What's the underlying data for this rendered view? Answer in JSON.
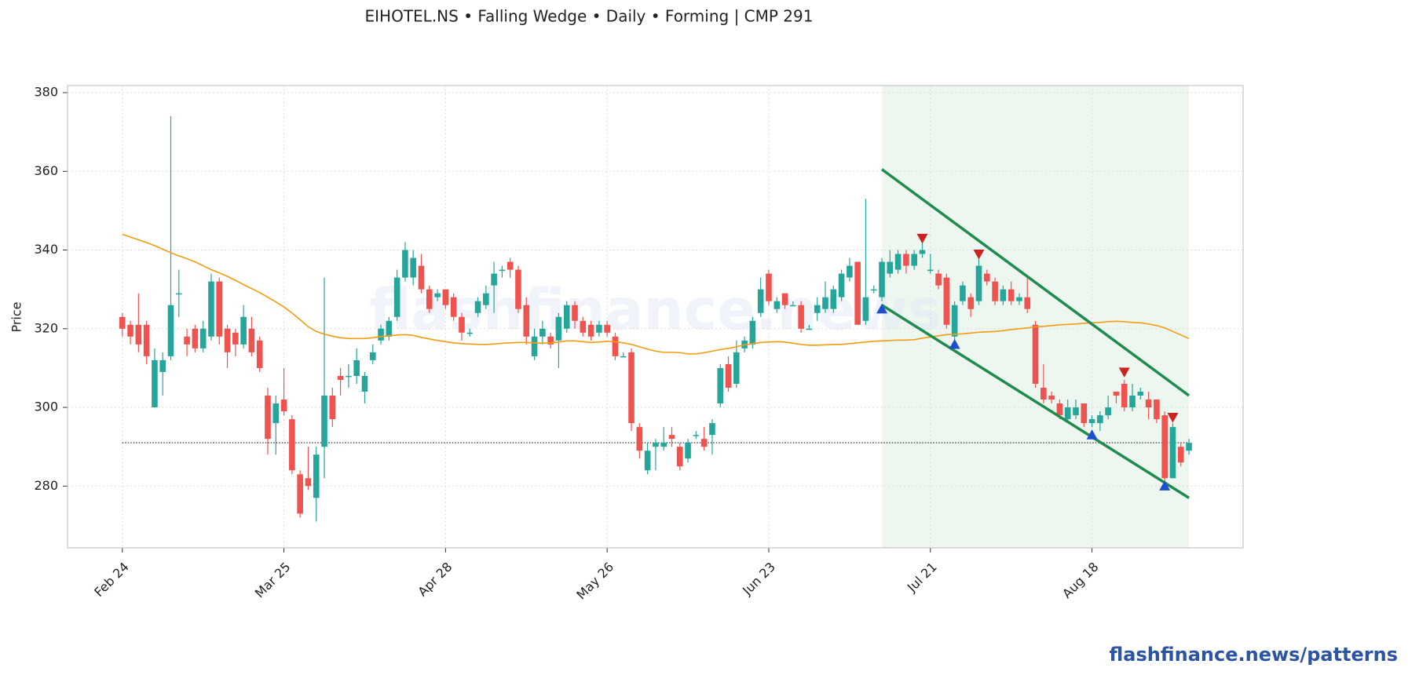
{
  "chart_data": {
    "type": "candlestick",
    "title": "EIHOTEL.NS  •  Falling Wedge  •  Daily  •  Forming  |  CMP 291",
    "ylabel": "Price",
    "watermark": "flashfinance.news",
    "footer": "flashfinance.news/patterns",
    "categories": [
      "Feb 24",
      null,
      null,
      null,
      null,
      null,
      null,
      null,
      null,
      null,
      null,
      null,
      null,
      null,
      null,
      null,
      null,
      null,
      null,
      null,
      "Mar 25",
      null,
      null,
      null,
      null,
      null,
      null,
      null,
      null,
      null,
      null,
      null,
      null,
      null,
      null,
      null,
      null,
      null,
      null,
      null,
      "Apr 28",
      null,
      null,
      null,
      null,
      null,
      null,
      null,
      null,
      null,
      null,
      null,
      null,
      null,
      null,
      null,
      null,
      null,
      null,
      null,
      "May 26",
      null,
      null,
      null,
      null,
      null,
      null,
      null,
      null,
      null,
      null,
      null,
      null,
      null,
      null,
      null,
      null,
      null,
      null,
      null,
      "Jun 23",
      null,
      null,
      null,
      null,
      null,
      null,
      null,
      null,
      null,
      null,
      null,
      null,
      null,
      null,
      null,
      null,
      null,
      null,
      null,
      "Jul 21",
      null,
      null,
      null,
      null,
      null,
      null,
      null,
      null,
      null,
      null,
      null,
      null,
      null,
      null,
      null,
      null,
      null,
      null,
      null,
      "Aug 18",
      null,
      null,
      null,
      null,
      null,
      null,
      null,
      null,
      null,
      null,
      null,
      null
    ],
    "open": [
      323,
      321,
      321,
      321,
      300,
      309,
      313,
      329,
      318,
      320,
      315,
      318,
      332,
      320,
      319,
      316,
      320,
      317,
      303,
      296,
      302,
      297,
      283,
      282,
      277,
      290,
      303,
      308,
      308,
      308,
      304,
      312,
      317,
      318,
      323,
      333,
      333,
      336,
      330,
      328,
      330,
      328,
      323,
      319,
      324,
      326,
      331,
      335,
      337,
      335,
      326,
      313,
      318,
      318,
      317,
      320,
      326,
      322,
      321,
      319,
      321,
      318,
      313,
      314,
      295,
      284,
      290,
      290,
      293,
      290,
      287,
      293,
      292,
      293,
      301,
      311,
      306,
      315,
      316,
      324,
      334,
      325,
      329,
      326,
      326,
      320,
      324,
      325,
      325,
      328,
      333,
      337,
      322,
      330,
      328,
      334,
      335,
      339,
      336,
      339,
      335,
      334,
      333,
      318,
      327,
      328,
      327,
      334,
      332,
      327,
      330,
      327,
      328,
      321,
      305,
      303,
      301,
      297,
      298,
      301,
      296,
      296,
      298,
      304,
      306,
      300,
      303,
      302,
      302,
      298,
      282,
      290,
      289
    ],
    "high": [
      324,
      322,
      329,
      322,
      315,
      314,
      374,
      335,
      320,
      321,
      322,
      334,
      333,
      321,
      320,
      326,
      323,
      318,
      305,
      303,
      310,
      298,
      284,
      290,
      290,
      333,
      305,
      310,
      311,
      315,
      309,
      316,
      321,
      323,
      335,
      342,
      340,
      339,
      331,
      330,
      330,
      329,
      324,
      320,
      328,
      331,
      337,
      336,
      338,
      336,
      328,
      320,
      322,
      319,
      324,
      327,
      327,
      323,
      322,
      322,
      322,
      319,
      314,
      315,
      296,
      291,
      292,
      295,
      295,
      291,
      292,
      294,
      295,
      297,
      311,
      313,
      317,
      318,
      323,
      333,
      335,
      328,
      329,
      327,
      327,
      321,
      328,
      332,
      331,
      335,
      338,
      337,
      353,
      331,
      338,
      340,
      340,
      340,
      340,
      342,
      339,
      335,
      334,
      327,
      332,
      329,
      338,
      335,
      333,
      331,
      332,
      329,
      333,
      322,
      311,
      304,
      302,
      302,
      302,
      301,
      298,
      299,
      303,
      304,
      307,
      306,
      305,
      304,
      302,
      299,
      296,
      291,
      292
    ],
    "low": [
      318,
      316,
      314,
      311,
      300,
      303,
      312,
      323,
      313,
      314,
      314,
      317,
      316,
      310,
      313,
      315,
      313,
      309,
      288,
      288,
      298,
      283,
      272,
      279,
      271,
      282,
      295,
      303,
      305,
      306,
      301,
      311,
      316,
      317,
      322,
      332,
      331,
      329,
      324,
      327,
      325,
      322,
      317,
      318,
      323,
      325,
      324,
      333,
      333,
      324,
      316,
      312,
      316,
      315,
      310,
      319,
      320,
      318,
      317,
      318,
      318,
      312,
      313,
      294,
      287,
      283,
      284,
      289,
      290,
      284,
      286,
      292,
      289,
      288,
      300,
      304,
      305,
      314,
      315,
      323,
      326,
      324,
      325,
      326,
      319,
      320,
      322,
      324,
      324,
      327,
      332,
      321,
      321,
      329,
      327,
      333,
      334,
      334,
      335,
      338,
      334,
      330,
      320,
      317,
      326,
      323,
      326,
      331,
      326,
      326,
      326,
      326,
      324,
      305,
      301,
      301,
      297,
      296,
      297,
      295,
      295,
      294,
      297,
      301,
      299,
      299,
      302,
      297,
      296,
      281,
      282,
      285,
      288
    ],
    "close": [
      320,
      318,
      316,
      313,
      312,
      312,
      326,
      329,
      316,
      315,
      320,
      332,
      318,
      314,
      316,
      323,
      314,
      310,
      292,
      301,
      299,
      284,
      273,
      280,
      288,
      303,
      297,
      307,
      308,
      312,
      308,
      314,
      320,
      322,
      333,
      340,
      338,
      330,
      325,
      329,
      326,
      323,
      319,
      319,
      327,
      329,
      334,
      335,
      335,
      325,
      318,
      318,
      320,
      316,
      323,
      326,
      322,
      319,
      318,
      321,
      319,
      313,
      313,
      296,
      289,
      289,
      291,
      291,
      292,
      285,
      291,
      293,
      290,
      296,
      310,
      305,
      314,
      317,
      322,
      330,
      327,
      327,
      326,
      326,
      320,
      320,
      326,
      328,
      330,
      334,
      336,
      321,
      328,
      330,
      337,
      337,
      339,
      336,
      339,
      340,
      335,
      331,
      321,
      326,
      331,
      325,
      336,
      332,
      327,
      330,
      327,
      328,
      325,
      306,
      302,
      302,
      298,
      300,
      300,
      296,
      297,
      298,
      300,
      303,
      300,
      303,
      304,
      300,
      297,
      282,
      295,
      286,
      291
    ],
    "up_color": "#26a69a",
    "down_color": "#ef5350",
    "moving_average": {
      "color": "#f39c12",
      "values": [
        344,
        343.3,
        342.6,
        341.9,
        341.1,
        340.2,
        339.3,
        338.5,
        337.8,
        337,
        336,
        335,
        334.2,
        333.3,
        332.3,
        331.2,
        330.2,
        329.2,
        328,
        326.8,
        325.5,
        324,
        322.3,
        320.5,
        319.3,
        318.6,
        318.1,
        317.7,
        317.5,
        317.5,
        317.5,
        317.7,
        318,
        318.2,
        318.4,
        318.5,
        318.3,
        317.8,
        317.4,
        317,
        316.7,
        316.4,
        316.2,
        316.1,
        316,
        316,
        316.1,
        316.3,
        316.4,
        316.5,
        316.5,
        316.4,
        316.3,
        316.4,
        316.6,
        316.9,
        316.9,
        316.7,
        316.5,
        316.6,
        316.8,
        316.7,
        316.4,
        316,
        315.4,
        314.8,
        314.3,
        314,
        314,
        313.9,
        313.6,
        313.6,
        313.9,
        314.3,
        314.7,
        315,
        315.4,
        315.9,
        316.2,
        316.5,
        316.6,
        316.7,
        316.6,
        316.3,
        316,
        315.8,
        315.8,
        315.9,
        316,
        316,
        316.2,
        316.4,
        316.6,
        316.8,
        316.9,
        317,
        317.1,
        317.1,
        317.2,
        317.6,
        317.9,
        318.2,
        318.5,
        318.6,
        318.7,
        318.9,
        319.1,
        319.2,
        319.3,
        319.5,
        319.8,
        320,
        320.2,
        320.5,
        320.6,
        320.8,
        321,
        321.1,
        321.2,
        321.4,
        321.5,
        321.6,
        321.8,
        321.9,
        321.8,
        321.6,
        321.5,
        321.2,
        320.8,
        320.2,
        319.3,
        318.4,
        317.5
      ]
    },
    "wedge": {
      "color": "#1e8c4e",
      "upper": {
        "x": [
          94,
          132
        ],
        "y": [
          360.5,
          303
        ]
      },
      "lower": {
        "x": [
          94,
          132
        ],
        "y": [
          326,
          277
        ]
      }
    },
    "pattern_range": [
      94,
      132
    ],
    "cmp_line": 291,
    "peaks": {
      "color": "#cc2222",
      "x": [
        99,
        106,
        124,
        130
      ],
      "y": [
        343,
        339,
        309,
        297.5
      ]
    },
    "troughs": {
      "color": "#1f4fd1",
      "x": [
        94,
        103,
        120,
        129
      ],
      "y": [
        325,
        316,
        293,
        280
      ]
    },
    "xlim": [
      -6.78,
      138.7
    ],
    "ylim": [
      264.3,
      381.8
    ],
    "yticks": [
      280,
      300,
      320,
      340,
      360,
      380
    ],
    "grid": true
  }
}
